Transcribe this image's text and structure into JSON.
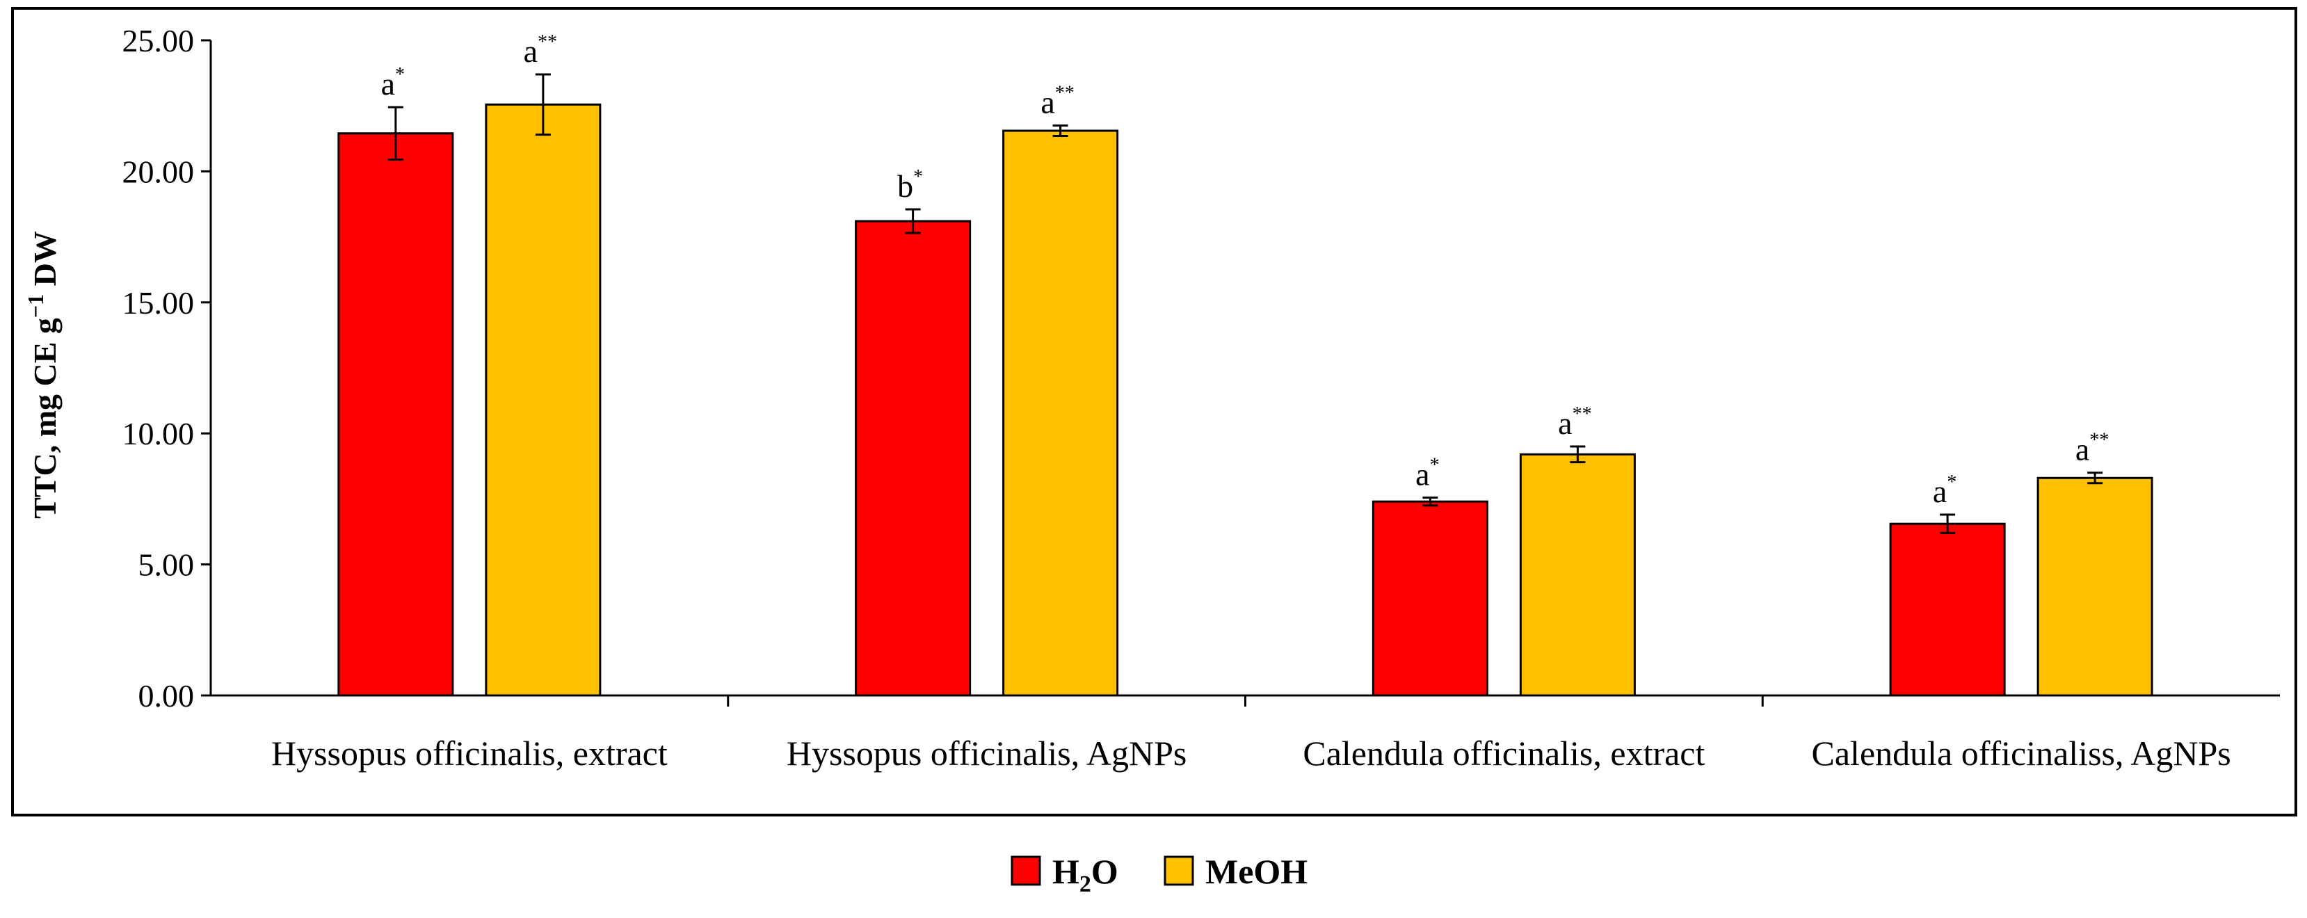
{
  "chart_data": {
    "type": "bar",
    "title": "",
    "xlabel": "",
    "ylabel": "TTC, mg CE g-1 DW",
    "ylabel_parts": {
      "main": "TTC, mg CE g",
      "sup": "−1",
      "tail": " DW"
    },
    "ylim": [
      0,
      25
    ],
    "yticks": [
      "0.00",
      "5.00",
      "10.00",
      "15.00",
      "20.00",
      "25.00"
    ],
    "categories": [
      "Hyssopus officinalis, extract",
      "Hyssopus officinalis, AgNPs",
      "Calendula officinalis, extract",
      "Calendula officinaliss, AgNPs"
    ],
    "series": [
      {
        "name": "H2O",
        "legend_main": "H",
        "legend_sub": "2",
        "legend_tail": "O",
        "color": "#ff0000",
        "values": [
          21.45,
          18.1,
          7.4,
          6.55
        ],
        "errors": [
          1.0,
          0.45,
          0.15,
          0.35
        ],
        "letters": [
          "a",
          "b",
          "a",
          "a"
        ],
        "marks": [
          "*",
          "*",
          "*",
          "*"
        ]
      },
      {
        "name": "MeOH",
        "legend_main": "MeOH",
        "legend_sub": "",
        "legend_tail": "",
        "color": "#ffc000",
        "values": [
          22.55,
          21.55,
          9.2,
          8.3
        ],
        "errors": [
          1.15,
          0.2,
          0.3,
          0.2
        ],
        "letters": [
          "a",
          "a",
          "a",
          "a"
        ],
        "marks": [
          "**",
          "**",
          "**",
          "**"
        ]
      }
    ],
    "legend_position": "bottom"
  }
}
